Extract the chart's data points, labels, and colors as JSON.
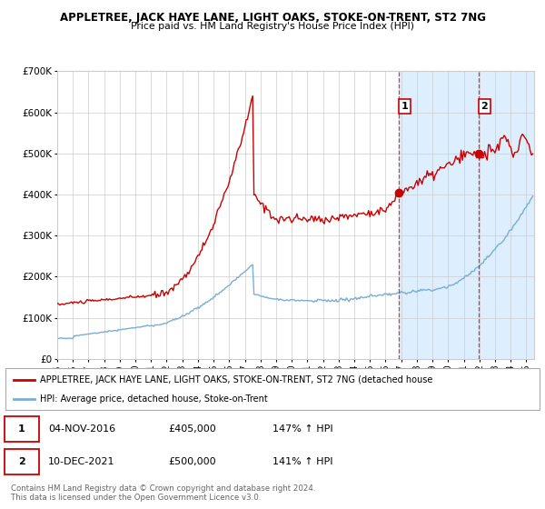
{
  "title": "APPLETREE, JACK HAYE LANE, LIGHT OAKS, STOKE-ON-TRENT, ST2 7NG",
  "subtitle": "Price paid vs. HM Land Registry's House Price Index (HPI)",
  "ylim": [
    0,
    700000
  ],
  "xlim_start": 1995.0,
  "xlim_end": 2025.5,
  "yticks": [
    0,
    100000,
    200000,
    300000,
    400000,
    500000,
    600000,
    700000
  ],
  "ytick_labels": [
    "£0",
    "£100K",
    "£200K",
    "£300K",
    "£400K",
    "£500K",
    "£600K",
    "£700K"
  ],
  "xticks": [
    1995,
    1996,
    1997,
    1998,
    1999,
    2000,
    2001,
    2002,
    2003,
    2004,
    2005,
    2006,
    2007,
    2008,
    2009,
    2010,
    2011,
    2012,
    2013,
    2014,
    2015,
    2016,
    2017,
    2018,
    2019,
    2020,
    2021,
    2022,
    2023,
    2024,
    2025
  ],
  "red_color": "#cc0000",
  "blue_color": "#7aadd4",
  "marker1_x": 2016.84,
  "marker1_y": 405000,
  "marker2_x": 2021.95,
  "marker2_y": 500000,
  "vline1_x": 2016.84,
  "vline2_x": 2021.95,
  "legend_label_red": "APPLETREE, JACK HAYE LANE, LIGHT OAKS, STOKE-ON-TRENT, ST2 7NG (detached house",
  "legend_label_blue": "HPI: Average price, detached house, Stoke-on-Trent",
  "footnote1": "Contains HM Land Registry data © Crown copyright and database right 2024.",
  "footnote2": "This data is licensed under the Open Government Licence v3.0.",
  "background_color": "#ffffff",
  "highlight_bg_color": "#ddeeff"
}
